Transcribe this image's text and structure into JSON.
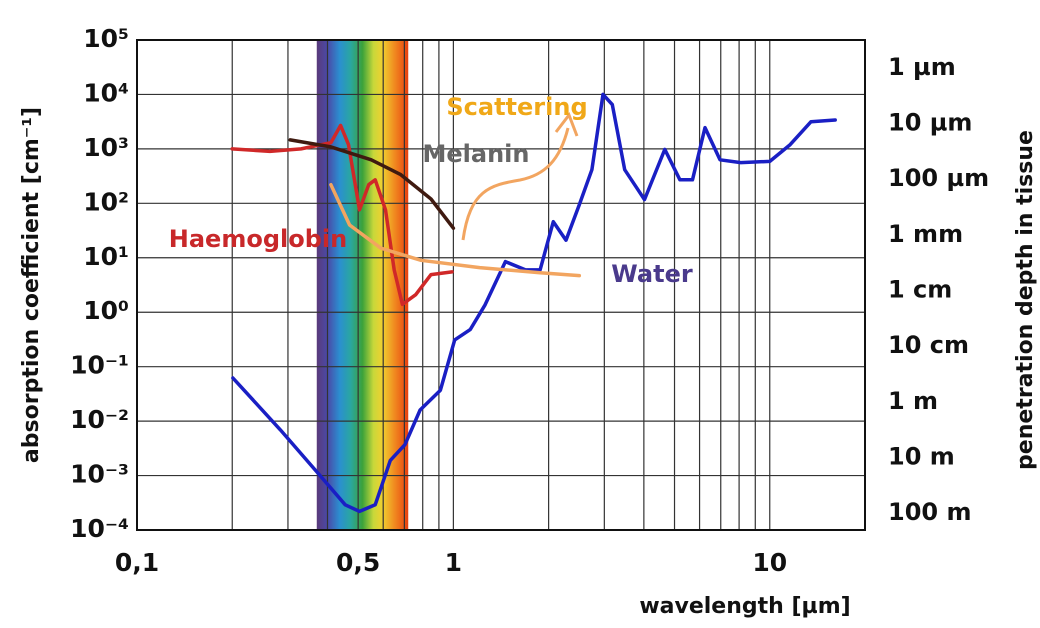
{
  "chart_data": {
    "type": "line",
    "xscale": "log",
    "yscale": "log",
    "y2scale": "log",
    "grid": true,
    "xlabel": "wavelength [µm]",
    "ylabel": "absorption coefficient [cm⁻¹]",
    "y2label": "penetration depth in tissue",
    "xlim": [
      0.1,
      20
    ],
    "ylim": [
      0.0001,
      100000
    ],
    "y2lim": [
      200,
      3.16e-07
    ],
    "xticks": [
      {
        "value": 0.1,
        "label": "0,1"
      },
      {
        "value": 0.5,
        "label": "0,5"
      },
      1,
      10
    ],
    "x_grid": [
      0.2,
      0.3,
      0.4,
      0.5,
      0.6,
      0.7,
      0.8,
      0.9,
      1,
      2,
      3,
      4,
      5,
      6,
      7,
      8,
      9,
      10
    ],
    "yticks": [
      {
        "value": 0.0001,
        "label": "10⁻⁴"
      },
      {
        "value": 0.001,
        "label": "10⁻³"
      },
      {
        "value": 0.01,
        "label": "10⁻²"
      },
      {
        "value": 0.1,
        "label": "10⁻¹"
      },
      {
        "value": 1,
        "label": "10⁰"
      },
      {
        "value": 10,
        "label": "10¹"
      },
      {
        "value": 100,
        "label": "10²"
      },
      {
        "value": 1000,
        "label": "10³"
      },
      {
        "value": 10000,
        "label": "10⁴"
      },
      {
        "value": 100000,
        "label": "10⁵"
      }
    ],
    "y2ticks": [
      {
        "value": 1e-06,
        "label": "1 µm"
      },
      {
        "value": 1e-05,
        "label": "10 µm"
      },
      {
        "value": 0.0001,
        "label": "100 µm"
      },
      {
        "value": 0.001,
        "label": "1 mm"
      },
      {
        "value": 0.01,
        "label": "1 cm"
      },
      {
        "value": 0.1,
        "label": "10 cm"
      },
      {
        "value": 1,
        "label": "1 m"
      },
      {
        "value": 10,
        "label": "10 m"
      },
      {
        "value": 100,
        "label": "100 m"
      }
    ],
    "visible_band": [
      0.37,
      0.72
    ],
    "series": [
      {
        "name": "Water",
        "color": "#1a1fc4",
        "label_color": "#4a3a8c",
        "x": [
          0.201,
          0.284,
          0.379,
          0.455,
          0.505,
          0.566,
          0.632,
          0.703,
          0.785,
          0.91,
          1.01,
          1.13,
          1.26,
          1.46,
          1.69,
          1.88,
          2.07,
          2.27,
          2.5,
          2.74,
          2.97,
          3.18,
          3.48,
          4.02,
          4.66,
          5.2,
          5.7,
          6.24,
          6.96,
          8.1,
          10,
          11.6,
          13.5,
          16.1
        ],
        "values": [
          0.062,
          0.0069,
          0.001,
          0.00029,
          0.00022,
          0.00029,
          0.0019,
          0.0037,
          0.016,
          0.037,
          0.31,
          0.48,
          1.37,
          8.5,
          6,
          6,
          46,
          21,
          94,
          414,
          10000,
          6500,
          414,
          117,
          980,
          270,
          270,
          2460,
          630,
          560,
          590,
          1200,
          3160,
          3400
        ]
      },
      {
        "name": "Haemoglobin",
        "color": "#d02828",
        "label_color": "#c8282a",
        "x": [
          0.2,
          0.263,
          0.33,
          0.41,
          0.44,
          0.466,
          0.505,
          0.54,
          0.566,
          0.61,
          0.65,
          0.69,
          0.76,
          0.85,
          0.99
        ],
        "values": [
          1000,
          900,
          1000,
          1300,
          2700,
          1200,
          76,
          220,
          270,
          76,
          6,
          1.4,
          2.1,
          4.9,
          5.5
        ]
      },
      {
        "name": "Melanin",
        "color": "#3f1a10",
        "label_color": "#666666",
        "x": [
          0.305,
          0.41,
          0.55,
          0.68,
          0.85,
          1.0
        ],
        "values": [
          1460,
          1090,
          630,
          340,
          120,
          35
        ]
      },
      {
        "name": "Scattering",
        "color": "#f2a560",
        "label_color": "#f0a818",
        "x": [
          0.41,
          0.47,
          0.59,
          0.79,
          1.21,
          1.88,
          2.5
        ],
        "values": [
          220,
          40,
          15,
          9,
          6.6,
          5.3,
          4.7
        ]
      }
    ]
  }
}
